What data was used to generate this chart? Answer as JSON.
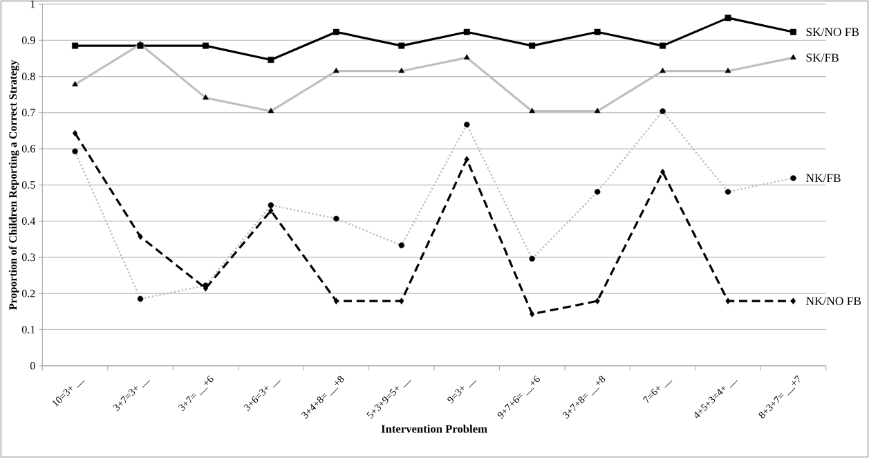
{
  "chart_data": {
    "type": "line",
    "xlabel": "Intervention Problem",
    "ylabel": "Proportion of Children Reporting a Correct Strategy",
    "categories": [
      "10=3+ __",
      "3+7=3+ __",
      "3+7= __+6",
      "3+6=3+ __",
      "3+4+8= __+8",
      "5+3+9=5+ __",
      "9=3+ __",
      "9+7+6= __+6",
      "3+7+8= __+8",
      "7=6+ __",
      "4+5+3=4+ __",
      "8+3+7= __+7"
    ],
    "series": [
      {
        "name": "SK/NO FB",
        "color": "#000000",
        "marker": "square",
        "line_style": "solid",
        "values": [
          0.885,
          0.885,
          0.885,
          0.846,
          0.923,
          0.885,
          0.923,
          0.885,
          0.923,
          0.885,
          0.962,
          0.923
        ]
      },
      {
        "name": "SK/FB",
        "color": "#bfbfbf",
        "marker": "triangle",
        "line_style": "solid",
        "values": [
          0.778,
          0.889,
          0.741,
          0.704,
          0.815,
          0.815,
          0.852,
          0.704,
          0.704,
          0.815,
          0.815,
          0.852
        ]
      },
      {
        "name": "NK/FB",
        "color": "#bfbfbf",
        "marker": "circle",
        "line_style": "dotted",
        "values": [
          0.593,
          0.185,
          0.222,
          0.444,
          0.407,
          0.333,
          0.667,
          0.296,
          0.481,
          0.704,
          0.481,
          0.519
        ]
      },
      {
        "name": "NK/NO FB",
        "color": "#000000",
        "marker": "diamond",
        "line_style": "dashed",
        "values": [
          0.643,
          0.357,
          0.214,
          0.429,
          0.179,
          0.179,
          0.571,
          0.143,
          0.179,
          0.536,
          0.179,
          0.179
        ]
      }
    ],
    "ylim": [
      0,
      1
    ],
    "yticks": [
      0,
      0.1,
      0.2,
      0.3,
      0.4,
      0.5,
      0.6,
      0.7,
      0.8,
      0.9,
      1
    ],
    "grid": "y",
    "legend": false
  }
}
